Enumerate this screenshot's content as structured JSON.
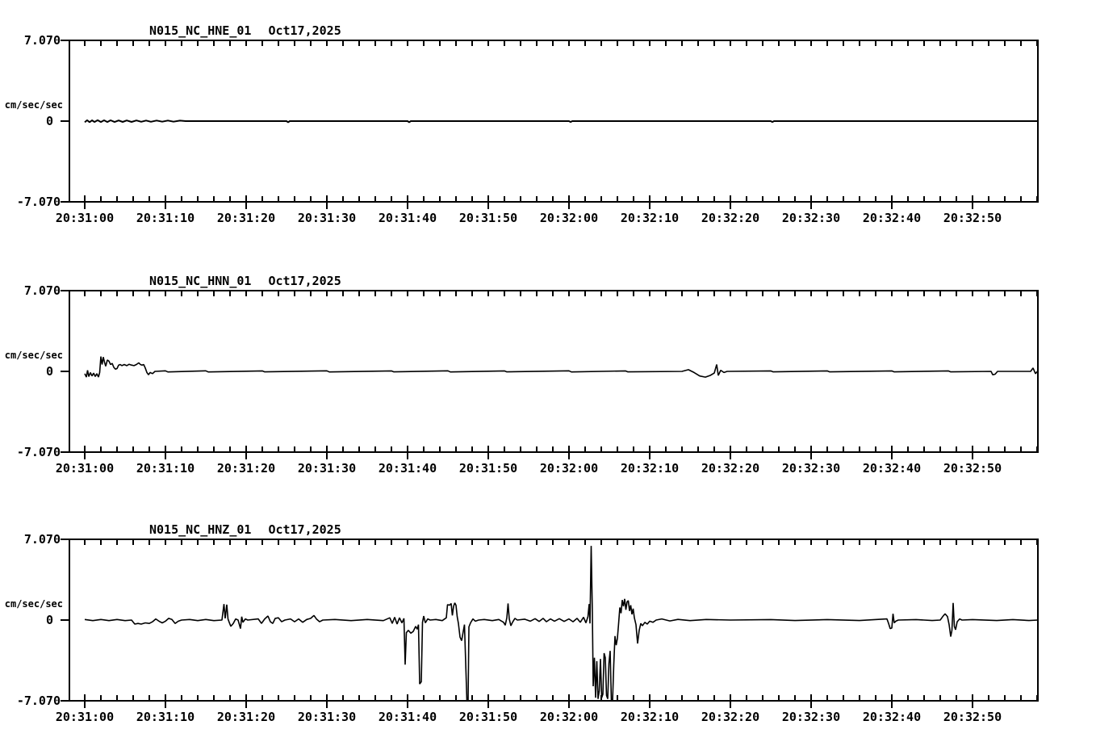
{
  "colors": {
    "background": "#ffffff",
    "trace": "#000000",
    "frame": "#000000",
    "text": "#000000"
  },
  "y_axis": {
    "top_label": "7.070",
    "zero_label": "0",
    "bottom_label": "-7.070",
    "unit": "cm/sec/sec",
    "ylim": [
      -7.07,
      7.07
    ]
  },
  "x_axis": {
    "labels": [
      "20:31:00",
      "20:31:10",
      "20:31:20",
      "20:31:30",
      "20:31:40",
      "20:31:50",
      "20:32:00",
      "20:32:10",
      "20:32:20",
      "20:32:30",
      "20:32:40",
      "20:32:50"
    ],
    "major_interval_sec": 10,
    "minor_interval_sec": 2,
    "trace_start_sec": 0,
    "trace_end_sec": 118.1
  },
  "chart_data": [
    {
      "type": "line",
      "title_station": "N015_NC_HNE_01",
      "title_date": "Oct17,2025",
      "channel": "HNE",
      "xlabel": "",
      "ylabel": "cm/sec/sec",
      "ylim": [
        -7.07,
        7.07
      ],
      "y_tick_labels": [
        "7.070",
        "0",
        "-7.070"
      ],
      "points": [
        [
          0,
          -0.1
        ],
        [
          0.3,
          0.08
        ],
        [
          0.6,
          -0.1
        ],
        [
          0.9,
          0.07
        ],
        [
          1.2,
          -0.08
        ],
        [
          1.6,
          0.08
        ],
        [
          2,
          -0.08
        ],
        [
          2.4,
          0.07
        ],
        [
          2.8,
          -0.08
        ],
        [
          3.2,
          0.07
        ],
        [
          3.7,
          -0.08
        ],
        [
          4.2,
          0.06
        ],
        [
          4.7,
          -0.07
        ],
        [
          5.2,
          0.06
        ],
        [
          5.8,
          -0.07
        ],
        [
          6.4,
          0.06
        ],
        [
          7,
          -0.06
        ],
        [
          7.6,
          0.05
        ],
        [
          8.2,
          -0.06
        ],
        [
          8.9,
          0.05
        ],
        [
          9.6,
          -0.05
        ],
        [
          10.3,
          0.05
        ],
        [
          11,
          -0.05
        ],
        [
          11.8,
          0.04
        ],
        [
          12.5,
          0
        ],
        [
          25,
          0
        ],
        [
          25.2,
          -0.1
        ],
        [
          25.4,
          0
        ],
        [
          40,
          0
        ],
        [
          40.2,
          -0.1
        ],
        [
          40.4,
          0
        ],
        [
          60,
          0
        ],
        [
          60.2,
          -0.08
        ],
        [
          60.4,
          0
        ],
        [
          85,
          0
        ],
        [
          85.2,
          -0.08
        ],
        [
          85.4,
          0
        ],
        [
          118.1,
          0
        ]
      ]
    },
    {
      "type": "line",
      "title_station": "N015_NC_HNN_01",
      "title_date": "Oct17,2025",
      "channel": "HNN",
      "xlabel": "",
      "ylabel": "cm/sec/sec",
      "ylim": [
        -7.07,
        7.07
      ],
      "y_tick_labels": [
        "7.070",
        "0",
        "-7.070"
      ],
      "points": [
        [
          0,
          -0.2
        ],
        [
          0.2,
          -0.5
        ],
        [
          0.35,
          0.1
        ],
        [
          0.5,
          -0.45
        ],
        [
          0.7,
          -0.1
        ],
        [
          0.9,
          -0.4
        ],
        [
          1.1,
          -0.15
        ],
        [
          1.3,
          -0.45
        ],
        [
          1.5,
          -0.2
        ],
        [
          1.7,
          -0.5
        ],
        [
          1.85,
          -0.1
        ],
        [
          2,
          1.3
        ],
        [
          2.15,
          0.6
        ],
        [
          2.3,
          1.25
        ],
        [
          2.45,
          0.8
        ],
        [
          2.6,
          0.45
        ],
        [
          2.8,
          1
        ],
        [
          3,
          0.9
        ],
        [
          3.2,
          0.6
        ],
        [
          3.4,
          0.7
        ],
        [
          3.6,
          0.35
        ],
        [
          3.8,
          0.2
        ],
        [
          4,
          0.25
        ],
        [
          4.2,
          0.55
        ],
        [
          4.4,
          0.6
        ],
        [
          4.6,
          0.5
        ],
        [
          4.9,
          0.6
        ],
        [
          5.2,
          0.5
        ],
        [
          5.5,
          0.62
        ],
        [
          5.8,
          0.55
        ],
        [
          6.1,
          0.5
        ],
        [
          6.4,
          0.6
        ],
        [
          6.7,
          0.75
        ],
        [
          6.9,
          0.6
        ],
        [
          7.1,
          0.55
        ],
        [
          7.3,
          0.6
        ],
        [
          7.5,
          0.3
        ],
        [
          7.7,
          -0.1
        ],
        [
          7.9,
          -0.3
        ],
        [
          8.1,
          -0.1
        ],
        [
          8.4,
          -0.2
        ],
        [
          8.7,
          0
        ],
        [
          10,
          0.05
        ],
        [
          10.3,
          -0.05
        ],
        [
          15,
          0.05
        ],
        [
          15.3,
          -0.05
        ],
        [
          22,
          0.04
        ],
        [
          22.3,
          -0.04
        ],
        [
          30,
          0.05
        ],
        [
          30.3,
          -0.05
        ],
        [
          38,
          0.04
        ],
        [
          38.3,
          -0.04
        ],
        [
          45,
          0.05
        ],
        [
          45.3,
          -0.05
        ],
        [
          52,
          0.04
        ],
        [
          52.3,
          -0.04
        ],
        [
          60,
          0.05
        ],
        [
          60.3,
          -0.05
        ],
        [
          67,
          0.04
        ],
        [
          67.3,
          -0.04
        ],
        [
          74,
          0
        ],
        [
          74.8,
          0.15
        ],
        [
          75.5,
          -0.1
        ],
        [
          76.2,
          -0.4
        ],
        [
          76.9,
          -0.5
        ],
        [
          77.5,
          -0.35
        ],
        [
          78,
          -0.15
        ],
        [
          78.3,
          0.6
        ],
        [
          78.5,
          -0.35
        ],
        [
          78.8,
          0.1
        ],
        [
          79.2,
          -0.1
        ],
        [
          79.6,
          0
        ],
        [
          85,
          0.04
        ],
        [
          85.3,
          -0.04
        ],
        [
          92,
          0.04
        ],
        [
          92.3,
          -0.04
        ],
        [
          100,
          0.04
        ],
        [
          100.3,
          -0.04
        ],
        [
          107,
          0.04
        ],
        [
          107.3,
          -0.04
        ],
        [
          112.3,
          0
        ],
        [
          112.5,
          -0.3
        ],
        [
          112.8,
          -0.25
        ],
        [
          113.1,
          0
        ],
        [
          117.2,
          0
        ],
        [
          117.5,
          0.3
        ],
        [
          117.8,
          -0.2
        ],
        [
          118.1,
          0.05
        ]
      ]
    },
    {
      "type": "line",
      "title_station": "N015_NC_HNZ_01",
      "title_date": "Oct17,2025",
      "channel": "HNZ",
      "xlabel": "",
      "ylabel": "cm/sec/sec",
      "ylim": [
        -7.07,
        7.07
      ],
      "y_tick_labels": [
        "7.070",
        "0",
        "-7.070"
      ],
      "points": [
        [
          0,
          0.05
        ],
        [
          1,
          -0.05
        ],
        [
          2,
          0.05
        ],
        [
          3,
          -0.05
        ],
        [
          4,
          0.05
        ],
        [
          5,
          -0.05
        ],
        [
          5.8,
          0
        ],
        [
          6.2,
          -0.35
        ],
        [
          6.6,
          -0.3
        ],
        [
          7,
          -0.35
        ],
        [
          7.5,
          -0.25
        ],
        [
          8,
          -0.3
        ],
        [
          8.4,
          -0.15
        ],
        [
          8.8,
          0.1
        ],
        [
          9.2,
          -0.1
        ],
        [
          9.6,
          -0.25
        ],
        [
          10,
          -0.1
        ],
        [
          10.4,
          0.15
        ],
        [
          10.8,
          0.05
        ],
        [
          11.2,
          -0.3
        ],
        [
          11.6,
          -0.1
        ],
        [
          12,
          0
        ],
        [
          13,
          0.05
        ],
        [
          14,
          -0.05
        ],
        [
          15,
          0.05
        ],
        [
          16,
          -0.05
        ],
        [
          17,
          0
        ],
        [
          17.25,
          1.4
        ],
        [
          17.4,
          0.15
        ],
        [
          17.6,
          1.35
        ],
        [
          17.75,
          0.1
        ],
        [
          17.9,
          -0.2
        ],
        [
          18.1,
          -0.55
        ],
        [
          18.4,
          -0.3
        ],
        [
          18.7,
          0.1
        ],
        [
          19,
          0
        ],
        [
          19.3,
          -0.75
        ],
        [
          19.45,
          0.3
        ],
        [
          19.6,
          -0.2
        ],
        [
          19.9,
          0.1
        ],
        [
          20.2,
          0
        ],
        [
          21.5,
          0.1
        ],
        [
          21.9,
          -0.3
        ],
        [
          22.3,
          0.1
        ],
        [
          22.7,
          0.35
        ],
        [
          23,
          -0.15
        ],
        [
          23.3,
          -0.3
        ],
        [
          23.6,
          0.15
        ],
        [
          24,
          0.2
        ],
        [
          24.4,
          -0.15
        ],
        [
          24.8,
          0
        ],
        [
          25.5,
          0.1
        ],
        [
          26,
          -0.15
        ],
        [
          26.5,
          0.1
        ],
        [
          27,
          -0.2
        ],
        [
          27.5,
          0.05
        ],
        [
          28,
          0.15
        ],
        [
          28.4,
          0.4
        ],
        [
          28.7,
          0.1
        ],
        [
          29.1,
          -0.15
        ],
        [
          29.5,
          0
        ],
        [
          31,
          0.05
        ],
        [
          33,
          -0.05
        ],
        [
          35,
          0.05
        ],
        [
          37,
          -0.05
        ],
        [
          37.8,
          0.2
        ],
        [
          38.1,
          -0.3
        ],
        [
          38.4,
          0.25
        ],
        [
          38.7,
          -0.35
        ],
        [
          39,
          0.2
        ],
        [
          39.3,
          -0.25
        ],
        [
          39.55,
          0.15
        ],
        [
          39.7,
          -3.9
        ],
        [
          39.85,
          -1.1
        ],
        [
          40.1,
          -0.9
        ],
        [
          40.4,
          -1.15
        ],
        [
          40.7,
          -1
        ],
        [
          41,
          -0.55
        ],
        [
          41.2,
          -0.8
        ],
        [
          41.35,
          -0.4
        ],
        [
          41.5,
          -5.6
        ],
        [
          41.7,
          -5.4
        ],
        [
          41.85,
          -0.2
        ],
        [
          42,
          0.35
        ],
        [
          42.2,
          -0.25
        ],
        [
          42.5,
          0.1
        ],
        [
          42.8,
          0
        ],
        [
          43.5,
          0.05
        ],
        [
          44.3,
          -0.05
        ],
        [
          44.8,
          0.2
        ],
        [
          44.95,
          1.35
        ],
        [
          45.2,
          1.3
        ],
        [
          45.4,
          1.45
        ],
        [
          45.55,
          0.4
        ],
        [
          45.7,
          1.2
        ],
        [
          45.85,
          1.5
        ],
        [
          46,
          1.3
        ],
        [
          46.15,
          0.3
        ],
        [
          46.3,
          -0.3
        ],
        [
          46.5,
          -1.5
        ],
        [
          46.7,
          -1.8
        ],
        [
          46.9,
          -1
        ],
        [
          47.05,
          -0.4
        ],
        [
          47.35,
          -7.07
        ],
        [
          47.5,
          -7.07
        ],
        [
          47.6,
          -0.6
        ],
        [
          47.8,
          -0.25
        ],
        [
          48.1,
          0.1
        ],
        [
          48.4,
          -0.1
        ],
        [
          48.8,
          0
        ],
        [
          49.5,
          0.05
        ],
        [
          50.5,
          -0.05
        ],
        [
          51.3,
          0.05
        ],
        [
          51.9,
          -0.2
        ],
        [
          52.1,
          -0.45
        ],
        [
          52.3,
          0.2
        ],
        [
          52.45,
          1.45
        ],
        [
          52.6,
          0.1
        ],
        [
          52.8,
          -0.5
        ],
        [
          53,
          -0.2
        ],
        [
          53.3,
          0.15
        ],
        [
          53.6,
          0
        ],
        [
          54.5,
          0.08
        ],
        [
          55.2,
          -0.1
        ],
        [
          55.8,
          0.12
        ],
        [
          56.3,
          -0.12
        ],
        [
          56.8,
          0.15
        ],
        [
          57.2,
          -0.15
        ],
        [
          57.7,
          0.1
        ],
        [
          58.2,
          -0.1
        ],
        [
          58.8,
          0.12
        ],
        [
          59.4,
          -0.12
        ],
        [
          60,
          0.1
        ],
        [
          60.5,
          -0.15
        ],
        [
          61,
          0.15
        ],
        [
          61.4,
          -0.2
        ],
        [
          61.8,
          0.25
        ],
        [
          62.1,
          -0.25
        ],
        [
          62.35,
          0.3
        ],
        [
          62.5,
          1.4
        ],
        [
          62.6,
          -0.3
        ],
        [
          62.75,
          6.5
        ],
        [
          62.9,
          0.5
        ],
        [
          63,
          -5.8
        ],
        [
          63.15,
          -3.3
        ],
        [
          63.3,
          -6.8
        ],
        [
          63.45,
          -3.6
        ],
        [
          63.6,
          -6.9
        ],
        [
          63.75,
          -6.2
        ],
        [
          63.9,
          -3.4
        ],
        [
          64.05,
          -6.8
        ],
        [
          64.2,
          -6.5
        ],
        [
          64.35,
          -2.9
        ],
        [
          64.5,
          -3.3
        ],
        [
          64.65,
          -6.6
        ],
        [
          64.8,
          -6.9
        ],
        [
          64.95,
          -3.8
        ],
        [
          65.1,
          -2.7
        ],
        [
          65.25,
          -7.07
        ],
        [
          65.4,
          -7.07
        ],
        [
          65.55,
          -3.9
        ],
        [
          65.7,
          -1.4
        ],
        [
          65.85,
          -2.2
        ],
        [
          66,
          -1.6
        ],
        [
          66.15,
          -0.3
        ],
        [
          66.3,
          1.1
        ],
        [
          66.45,
          0.6
        ],
        [
          66.6,
          1.75
        ],
        [
          66.75,
          1.2
        ],
        [
          66.9,
          1.85
        ],
        [
          67.05,
          0.9
        ],
        [
          67.2,
          1.6
        ],
        [
          67.35,
          1.7
        ],
        [
          67.5,
          0.8
        ],
        [
          67.65,
          1.3
        ],
        [
          67.8,
          0.5
        ],
        [
          67.95,
          1
        ],
        [
          68.1,
          0.2
        ],
        [
          68.3,
          -0.4
        ],
        [
          68.5,
          -2.05
        ],
        [
          68.7,
          -0.9
        ],
        [
          68.9,
          -0.3
        ],
        [
          69.1,
          -0.5
        ],
        [
          69.4,
          -0.2
        ],
        [
          69.7,
          -0.35
        ],
        [
          70,
          -0.1
        ],
        [
          70.4,
          -0.2
        ],
        [
          70.8,
          0
        ],
        [
          71.5,
          0.1
        ],
        [
          72.5,
          -0.08
        ],
        [
          73.5,
          0.06
        ],
        [
          75,
          -0.05
        ],
        [
          77,
          0.05
        ],
        [
          80,
          0
        ],
        [
          85,
          0.04
        ],
        [
          88,
          -0.04
        ],
        [
          92,
          0.04
        ],
        [
          96,
          -0.04
        ],
        [
          99.4,
          0.1
        ],
        [
          99.6,
          -0.3
        ],
        [
          99.8,
          -0.75
        ],
        [
          100,
          -0.7
        ],
        [
          100.15,
          0.55
        ],
        [
          100.3,
          -0.25
        ],
        [
          100.5,
          -0.1
        ],
        [
          100.8,
          0
        ],
        [
          103,
          0.04
        ],
        [
          105,
          -0.04
        ],
        [
          106,
          0
        ],
        [
          106.3,
          0.3
        ],
        [
          106.6,
          0.55
        ],
        [
          106.9,
          0.3
        ],
        [
          107.1,
          -0.4
        ],
        [
          107.3,
          -1.45
        ],
        [
          107.45,
          -0.9
        ],
        [
          107.6,
          1.5
        ],
        [
          107.75,
          -0.55
        ],
        [
          107.9,
          -0.85
        ],
        [
          108.1,
          -0.15
        ],
        [
          108.4,
          0.1
        ],
        [
          108.7,
          0
        ],
        [
          110,
          0.04
        ],
        [
          113,
          -0.04
        ],
        [
          115,
          0.04
        ],
        [
          117,
          -0.04
        ],
        [
          118.1,
          0
        ]
      ]
    }
  ]
}
